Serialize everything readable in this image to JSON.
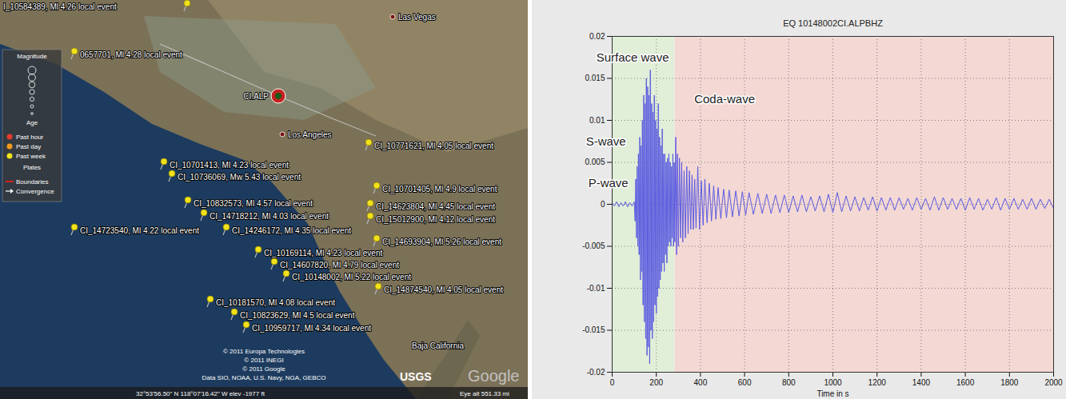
{
  "map": {
    "events": [
      "I_10584389, Ml 4.26 local event",
      "0657701, Ml 4.28 local event",
      "CI_10771621, Ml 4.05 local event",
      "CI_10701413, Ml 4.23 local event",
      "CI_10736069, Mw 5.43 local event",
      "CI_10701405, Ml 4.9 local event",
      "CI_10832573, Ml 4.57 local event",
      "CI_14623804, Ml 4.45 local event",
      "CI_14718212, Ml 4.03 local event",
      "CI_15012900, Ml 4.12 local event",
      "CI_14723540, Ml 4.22 local event",
      "CI_14246172, Ml 4.35 local event",
      "CI_14693904, Ml 5.26 local event",
      "CI_10169114, Ml 4.23 local event",
      "CI_14607820, Ml 4.79 local event",
      "CI_10148002, Ml 5.22 local event",
      "CI_14874540, Ml 4.05 local event",
      "CI_10181570, Ml 4.08 local event",
      "CI_10823629, Ml 4.5 local event",
      "CI_10959717, Ml 4.34 local event"
    ],
    "places": [
      "Las Vegas",
      "Los Angeles",
      "Baja California"
    ],
    "station": "CI.ALP",
    "legend": [
      {
        "title": "Magnitude",
        "items": []
      },
      {
        "title": "Age",
        "items": [
          {
            "label": "Past hour",
            "color": "#e53a2e"
          },
          {
            "label": "Past day",
            "color": "#f39a1e"
          },
          {
            "label": "Past week",
            "color": "#f2e21c"
          }
        ]
      },
      {
        "title": "Plates",
        "items": [
          {
            "label": "Boundaries",
            "color": "#d62020"
          },
          {
            "label": "Convergence",
            "color": "#ffffff"
          }
        ]
      }
    ],
    "credits": [
      "© 2011 Europa Technologies",
      "© 2011 INEGI",
      "© 2011 Google",
      "Data SIO, NOAA, U.S. Navy, NGA, GEBCO"
    ],
    "logos": [
      "USGS",
      "Google"
    ],
    "status_bar": [
      "32°53'56.50\" N 118°07'16.42\" W elev -1977 ft",
      "Eye alt 551.33 mi"
    ]
  },
  "chart_data": {
    "type": "line",
    "title": "EQ 10148002CI.ALPBHZ",
    "x_label": "Time in s",
    "color": "#5b5be0",
    "x": [
      0,
      10,
      20,
      30,
      40,
      50,
      60,
      70,
      80,
      90,
      100,
      104,
      107,
      110,
      113,
      116,
      119,
      122,
      125,
      128,
      131,
      134,
      137,
      140,
      143,
      146,
      149,
      152,
      155,
      158,
      161,
      164,
      167,
      170,
      173,
      176,
      179,
      182,
      185,
      188,
      191,
      194,
      197,
      200,
      203,
      206,
      209,
      212,
      215,
      218,
      221,
      224,
      227,
      230,
      233,
      236,
      239,
      242,
      245,
      248,
      251,
      254,
      257,
      260,
      263,
      266,
      269,
      272,
      275,
      278,
      281,
      284,
      288,
      292,
      296,
      300,
      305,
      310,
      315,
      320,
      326,
      332,
      338,
      344,
      350,
      356,
      362,
      368,
      374,
      380,
      388,
      396,
      404,
      412,
      420,
      430,
      440,
      450,
      460,
      470,
      480,
      492,
      505,
      518,
      530,
      545,
      560,
      575,
      590,
      605,
      620,
      640,
      660,
      680,
      700,
      720,
      740,
      760,
      780,
      800,
      820,
      840,
      860,
      880,
      900,
      920,
      940,
      960,
      980,
      1000,
      1020,
      1040,
      1060,
      1080,
      1100,
      1120,
      1140,
      1160,
      1180,
      1200,
      1220,
      1240,
      1260,
      1280,
      1300,
      1320,
      1340,
      1360,
      1380,
      1400,
      1420,
      1440,
      1460,
      1480,
      1500,
      1520,
      1540,
      1560,
      1580,
      1600,
      1620,
      1640,
      1660,
      1680,
      1700,
      1720,
      1740,
      1760,
      1780,
      1800,
      1820,
      1840,
      1860,
      1880,
      1900,
      1920,
      1940,
      1960,
      1980,
      2000
    ],
    "values": [
      0.0002,
      -0.0002,
      0.0003,
      -0.0003,
      0.0002,
      -0.0002,
      0.0003,
      -0.0003,
      0.0002,
      -0.0002,
      0.0003,
      -0.002,
      0.003,
      -0.004,
      0.0045,
      -0.005,
      0.006,
      -0.006,
      0.008,
      -0.009,
      0.007,
      -0.008,
      0.01,
      -0.012,
      0.013,
      -0.014,
      0.012,
      -0.016,
      0.015,
      -0.018,
      0.014,
      -0.017,
      0.013,
      -0.019,
      0.016,
      -0.015,
      0.012,
      -0.016,
      0.011,
      -0.014,
      0.013,
      -0.012,
      0.01,
      -0.013,
      0.009,
      -0.011,
      0.012,
      -0.01,
      0.008,
      -0.009,
      0.007,
      -0.008,
      0.009,
      -0.007,
      0.006,
      -0.008,
      0.006,
      -0.006,
      0.005,
      -0.007,
      0.0055,
      -0.005,
      0.006,
      -0.0045,
      0.005,
      -0.005,
      0.0045,
      -0.004,
      0.006,
      -0.005,
      0.005,
      -0.0045,
      0.008,
      -0.006,
      0.006,
      -0.005,
      0.0055,
      -0.004,
      0.005,
      -0.0045,
      0.004,
      -0.004,
      0.0045,
      -0.0035,
      0.004,
      -0.003,
      0.0035,
      -0.003,
      0.003,
      -0.0028,
      0.0045,
      -0.003,
      0.0028,
      -0.0025,
      0.003,
      -0.0022,
      0.0025,
      -0.002,
      0.0022,
      -0.0018,
      0.002,
      -0.0017,
      0.0018,
      -0.0016,
      0.0017,
      -0.0015,
      0.0016,
      -0.0014,
      0.0015,
      -0.0013,
      0.0014,
      -0.0012,
      0.0013,
      -0.0011,
      0.0012,
      -0.0011,
      0.0011,
      -0.001,
      0.0011,
      -0.001,
      0.001,
      -0.0009,
      0.0011,
      -0.0009,
      0.0009,
      -0.0008,
      0.001,
      -0.0009,
      0.0012,
      -0.001,
      0.0014,
      -0.0009,
      0.001,
      -0.0008,
      0.0009,
      -0.0008,
      0.0008,
      -0.0007,
      0.0009,
      -0.0008,
      0.0008,
      -0.0007,
      0.0008,
      -0.0007,
      0.0008,
      -0.0006,
      0.0007,
      -0.0007,
      0.0008,
      -0.0006,
      0.0007,
      -0.0007,
      0.0009,
      -0.0007,
      0.0008,
      -0.0006,
      0.0007,
      -0.0006,
      0.0007,
      -0.0007,
      0.0008,
      -0.0006,
      0.0007,
      -0.0007,
      0.0006,
      -0.0006,
      0.0008,
      -0.0007,
      0.0007,
      -0.0006,
      0.0007,
      -0.0006,
      0.0006,
      -0.0006,
      0.0007,
      -0.0006,
      0.0006,
      -0.0005,
      0.0006,
      -0.0005
    ],
    "xlim": [
      0,
      2000
    ],
    "xticks": [
      0,
      200,
      400,
      600,
      800,
      1000,
      1200,
      1400,
      1600,
      1800,
      2000
    ],
    "ylim": [
      -0.02,
      0.02
    ],
    "yticks": [
      -0.02,
      -0.015,
      -0.01,
      -0.005,
      0,
      0.005,
      0.01,
      0.015,
      0.02
    ],
    "grid": true,
    "regions": [
      {
        "x0": 0,
        "x1": 285,
        "color": "#e1eed8"
      },
      {
        "x0": 285,
        "x1": 2000,
        "color": "#f3d8d4"
      }
    ],
    "annotations": [
      {
        "text": "Surface wave",
        "x": -72,
        "y": 0.0175
      },
      {
        "text": "S-wave",
        "x": -119,
        "y": 0.0075
      },
      {
        "text": "P-wave",
        "x": -108,
        "y": 0.0025
      },
      {
        "text": "Coda-wave",
        "x": 372,
        "y": 0.0125
      }
    ]
  }
}
